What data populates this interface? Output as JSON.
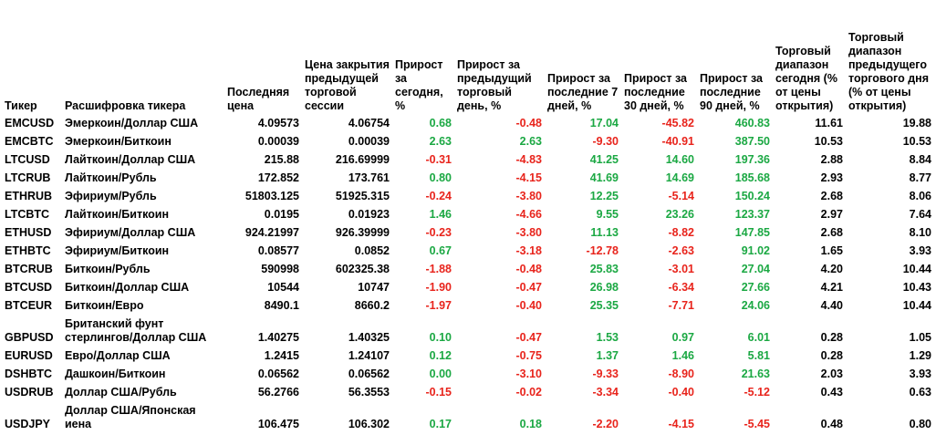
{
  "headers": {
    "ticker": "Тикер",
    "name": "Расшифровка тикера",
    "last": "Последняя цена",
    "prev_close": "Цена закрытия предыдущей торговой сессии",
    "today": "Прирост за сегодня, %",
    "prev_day": "Прирост за предыдущий торговый день, %",
    "d7": "Прирост за последние 7 дней, %",
    "d30": "Прирост за последние 30 дней, %",
    "d90": "Прирост за последние 90 дней, %",
    "range_today": "Торговый диапазон сегодня (% от цены открытия)",
    "range_prev": "Торговый диапазон предыдущего торгового дня (% от цены открытия)"
  },
  "rows": [
    {
      "ticker": "EMCUSD",
      "name": "Эмеркоин/Доллар США",
      "last": "4.09573",
      "prev_close": "4.06754",
      "today": "0.68",
      "prev_day": "-0.48",
      "d7": "17.04",
      "d30": "-45.82",
      "d90": "460.83",
      "range_today": "11.61",
      "range_prev": "19.88"
    },
    {
      "ticker": "EMCBTC",
      "name": "Эмеркоин/Биткоин",
      "last": "0.00039",
      "prev_close": "0.00039",
      "today": "2.63",
      "prev_day": "2.63",
      "d7": "-9.30",
      "d30": "-40.91",
      "d90": "387.50",
      "range_today": "10.53",
      "range_prev": "10.53"
    },
    {
      "ticker": "LTCUSD",
      "name": "Лайткоин/Доллар США",
      "last": "215.88",
      "prev_close": "216.69999",
      "today": "-0.31",
      "prev_day": "-4.83",
      "d7": "41.25",
      "d30": "14.60",
      "d90": "197.36",
      "range_today": "2.88",
      "range_prev": "8.84"
    },
    {
      "ticker": "LTCRUB",
      "name": "Лайткоин/Рубль",
      "last": "172.852",
      "prev_close": "173.761",
      "today": "0.80",
      "prev_day": "-4.15",
      "d7": "41.69",
      "d30": "14.69",
      "d90": "185.68",
      "range_today": "2.93",
      "range_prev": "8.77"
    },
    {
      "ticker": "ETHRUB",
      "name": "Эфириум/Рубль",
      "last": "51803.125",
      "prev_close": "51925.315",
      "today": "-0.24",
      "prev_day": "-3.80",
      "d7": "12.25",
      "d30": "-5.14",
      "d90": "150.24",
      "range_today": "2.68",
      "range_prev": "8.06"
    },
    {
      "ticker": "LTCBTC",
      "name": "Лайткоин/Биткоин",
      "last": "0.0195",
      "prev_close": "0.01923",
      "today": "1.46",
      "prev_day": "-4.66",
      "d7": "9.55",
      "d30": "23.26",
      "d90": "123.37",
      "range_today": "2.97",
      "range_prev": "7.64"
    },
    {
      "ticker": "ETHUSD",
      "name": "Эфириум/Доллар США",
      "last": "924.21997",
      "prev_close": "926.39999",
      "today": "-0.23",
      "prev_day": "-3.80",
      "d7": "11.13",
      "d30": "-8.82",
      "d90": "147.85",
      "range_today": "2.68",
      "range_prev": "8.10"
    },
    {
      "ticker": "ETHBTC",
      "name": "Эфириум/Биткоин",
      "last": "0.08577",
      "prev_close": "0.0852",
      "today": "0.67",
      "prev_day": "-3.18",
      "d7": "-12.78",
      "d30": "-2.63",
      "d90": "91.02",
      "range_today": "1.65",
      "range_prev": "3.93"
    },
    {
      "ticker": "BTCRUB",
      "name": "Биткоин/Рубль",
      "last": "590998",
      "prev_close": "602325.38",
      "today": "-1.88",
      "prev_day": "-0.48",
      "d7": "25.83",
      "d30": "-3.01",
      "d90": "27.04",
      "range_today": "4.20",
      "range_prev": "10.44"
    },
    {
      "ticker": "BTCUSD",
      "name": "Биткоин/Доллар США",
      "last": "10544",
      "prev_close": "10747",
      "today": "-1.90",
      "prev_day": "-0.47",
      "d7": "26.98",
      "d30": "-6.34",
      "d90": "27.66",
      "range_today": "4.21",
      "range_prev": "10.43"
    },
    {
      "ticker": "BTCEUR",
      "name": "Биткоин/Евро",
      "last": "8490.1",
      "prev_close": "8660.2",
      "today": "-1.97",
      "prev_day": "-0.40",
      "d7": "25.35",
      "d30": "-7.71",
      "d90": "24.06",
      "range_today": "4.40",
      "range_prev": "10.44"
    },
    {
      "ticker": "GBPUSD",
      "name": "Британский фунт стерлингов/Доллар США",
      "last": "1.40275",
      "prev_close": "1.40325",
      "today": "0.10",
      "prev_day": "-0.47",
      "d7": "1.53",
      "d30": "0.97",
      "d90": "6.01",
      "range_today": "0.28",
      "range_prev": "1.05",
      "tall": true
    },
    {
      "ticker": "EURUSD",
      "name": "Евро/Доллар США",
      "last": "1.2415",
      "prev_close": "1.24107",
      "today": "0.12",
      "prev_day": "-0.75",
      "d7": "1.37",
      "d30": "1.46",
      "d90": "5.81",
      "range_today": "0.28",
      "range_prev": "1.29"
    },
    {
      "ticker": "DSHBTC",
      "name": "Дашкоин/Биткоин",
      "last": "0.06562",
      "prev_close": "0.06562",
      "today": "0.00",
      "prev_day": "-3.10",
      "d7": "-9.33",
      "d30": "-8.90",
      "d90": "21.63",
      "range_today": "2.03",
      "range_prev": "3.93"
    },
    {
      "ticker": "USDRUB",
      "name": "Доллар США/Рубль",
      "last": "56.2766",
      "prev_close": "56.3553",
      "today": "-0.15",
      "prev_day": "-0.02",
      "d7": "-3.34",
      "d30": "-0.40",
      "d90": "-5.12",
      "range_today": "0.43",
      "range_prev": "0.63"
    },
    {
      "ticker": "USDJPY",
      "name": "Доллар США/Японская иена",
      "last": "106.475",
      "prev_close": "106.302",
      "today": "0.17",
      "prev_day": "0.18",
      "d7": "-2.20",
      "d30": "-4.15",
      "d90": "-5.45",
      "range_today": "0.48",
      "range_prev": "0.80",
      "tall": true
    }
  ],
  "colors": {
    "positive": "#1ba843",
    "negative": "#e8241c",
    "neutral": "#000000"
  }
}
